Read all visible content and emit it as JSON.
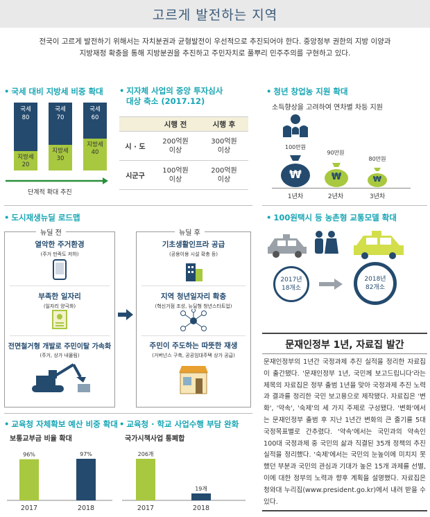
{
  "header": {
    "title": "고르게 발전하는 지역"
  },
  "intro": {
    "line1": "전국이 고르게 발전하기 위해서는 자치분권과 균형발전이 우선적으로 추진되어야 한다. 중앙정부 권한의 지방 이양과",
    "line2": "지방재정 확충을 통해 지방분권을 추진하고 주민자치로 풀뿌리 민주주의를 구현하고 있다."
  },
  "tax_ratio": {
    "title": "국세 대비 지방세 비중 확대",
    "arrow_label": "단계적 확대 추진",
    "bars": [
      {
        "top_label": "국세",
        "top_value": "80",
        "bottom_label": "지방세",
        "bottom_value": "20"
      },
      {
        "top_label": "국세",
        "top_value": "70",
        "bottom_label": "지방세",
        "bottom_value": "30"
      },
      {
        "top_label": "국세",
        "top_value": "60",
        "bottom_label": "지방세",
        "bottom_value": "40"
      }
    ]
  },
  "review": {
    "title_line1": "지자체 사업의 중앙 투자심사",
    "title_line2": "대상 축소 (2017.12)",
    "col_before": "시행 전",
    "col_after": "시행 후",
    "rows": [
      {
        "label": "시 · 도",
        "before_1": "200억원",
        "before_2": "이상",
        "after_1": "300억원",
        "after_2": "이상"
      },
      {
        "label": "시군구",
        "before_1": "100억원",
        "before_2": "이상",
        "after_1": "200억원",
        "after_2": "이상"
      }
    ]
  },
  "youth": {
    "title": "청년 창업농 지원 확대",
    "subtitle": "소득향상을 고려하여 연차별 차등 지원",
    "items": [
      {
        "amount": "100만원",
        "year": "1년차"
      },
      {
        "amount": "90만원",
        "year": "2년차"
      },
      {
        "amount": "80만원",
        "year": "3년차"
      }
    ],
    "bag_symbol": "₩"
  },
  "urban": {
    "title": "도시재생뉴딜 로드맵",
    "before_label": "뉴딜 전",
    "after_label": "뉴딜 후",
    "before_items": [
      {
        "title": "열악한 주거환경",
        "sub": "(주거 만족도 저하)"
      },
      {
        "title": "부족한 일자리",
        "sub": "(일자리 양극화)"
      },
      {
        "title": "전면철거형 개발로 주민이탈 가속화",
        "sub": "(주거, 상가 내몰림)"
      }
    ],
    "after_items": [
      {
        "title": "기초생활인프라 공급",
        "sub": "(공용이용 시설 확충 등)"
      },
      {
        "title": "지역 청년일자리 확충",
        "sub": "(혁신거점 조성, 뉴딜형 청년스타트업)"
      },
      {
        "title": "주민이 주도하는 따뜻한 재생",
        "sub": "(거버넌스 구축, 공공임대주택 상가 공급)"
      }
    ]
  },
  "taxi": {
    "title": "100원택시 등 농촌형 교통모델 확대",
    "from_year": "2017년",
    "from_count": "18개소",
    "to_year": "2018년",
    "to_count": "82개소"
  },
  "publication": {
    "title": "문재인정부 1년, 자료집 발간",
    "body": "문재인정부의 1년간 국정과제 추진 실적을 정리한 자료집이 출간됐다. '문재인정부 1년, 국민께 보고드립니다'라는 제목의 자료집은 정부 출범 1년을 맞아 국정과제 추진 노력과 결과를 정리한 국민 보고용으로 제작됐다. 자료집은 '변화', '약속', '숙제'의 세 가지 주제로 구성됐다. '변화'에서는 문재인정부 출범 후 지난 1년간 변화의 큰 줄기를 5대 국정목표별로 간추렸다. '약속'에서는 국민과의 약속인 100대 국정과제 중 국민의 삶과 직결된 35개 정책의 추진 실적을 정리했다. '숙제'에서는 국민의 눈높이에 미치지 못했던 부분과 국민의 관심과 기대가 높은 15개 과제를 선별, 이에 대한 정부의 노력과 향후 계획을 설명했다. 자료집은 청와대 누리집(www.president.go.kr)에서 내려 받을 수 있다."
  },
  "edu_budget": {
    "title": "교육청 자체확보 예산 비중 확대",
    "subtitle": "보통교부금 비율 확대"
  },
  "edu_burden": {
    "title": "교육청 · 학교 사업수행 부담 완화",
    "subtitle": "국가시책사업 통폐합"
  },
  "chart_data": [
    {
      "type": "bar",
      "categories": [
        "2017",
        "2018"
      ],
      "values": [
        96,
        97
      ],
      "value_labels": [
        "96%",
        "97%"
      ],
      "title": "교육청 자체확보 예산 비중 확대",
      "subtitle": "보통교부금 비율 확대",
      "colors": [
        "#a8c840",
        "#244a6e"
      ]
    },
    {
      "type": "bar",
      "categories": [
        "2017",
        "2018"
      ],
      "values": [
        206,
        19
      ],
      "value_labels": [
        "206개",
        "19개"
      ],
      "title": "교육청 · 학교 사업수행 부담 완화",
      "subtitle": "국가시책사업 통폐합",
      "colors": [
        "#a8c840",
        "#244a6e"
      ]
    }
  ],
  "colors": {
    "accent": "#17a6b4",
    "navy": "#244a6e",
    "green": "#a8c840",
    "taxi_yellow": "#d2de4a",
    "header_bg": "#e9e9ea"
  }
}
